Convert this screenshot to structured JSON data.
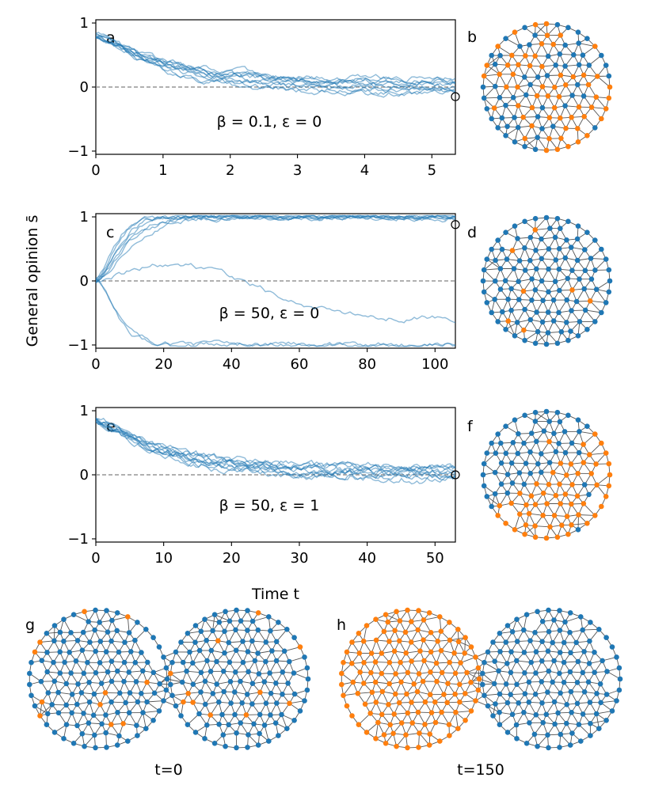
{
  "figure": {
    "ylabel": "General opinion s̄",
    "xlabel": "Time t",
    "colors": {
      "line": "#1f77b4",
      "blue": "#1f77b4",
      "orange": "#ff7f0e",
      "edge": "#555555",
      "zero": "#808080"
    }
  },
  "chart_data": [
    {
      "type": "line",
      "id": "a",
      "panel_label": "a",
      "annotation": "β = 0.1, ε = 0",
      "xlim": [
        0,
        5.35
      ],
      "ylim": [
        -1.05,
        1.05
      ],
      "xticks": [
        "0",
        "1",
        "2",
        "3",
        "4",
        "5"
      ],
      "xtick_values": [
        0,
        1,
        2,
        3,
        4,
        5
      ],
      "yticks": [
        "−1",
        "0",
        "1"
      ],
      "ytick_values": [
        -1,
        0,
        1
      ],
      "zero_line": true,
      "marker_end": [
        5.35,
        -0.15
      ],
      "series_count": 10,
      "series_start": 0.8,
      "series_targets": [
        0.05,
        -0.05,
        0.1,
        -0.1,
        0.0,
        0.12,
        -0.12,
        0.05,
        -0.02,
        0.08
      ],
      "trend": "decay",
      "decay_rate": 1.1,
      "noise": 0.035
    },
    {
      "type": "line",
      "id": "c",
      "panel_label": "c",
      "annotation": "β = 50, ε = 0",
      "xlim": [
        0,
        106
      ],
      "ylim": [
        -1.05,
        1.05
      ],
      "xticks": [
        "0",
        "20",
        "40",
        "60",
        "80",
        "100"
      ],
      "xtick_values": [
        0,
        20,
        40,
        60,
        80,
        100
      ],
      "yticks": [
        "−1",
        "0",
        "1"
      ],
      "ytick_values": [
        -1,
        0,
        1
      ],
      "zero_line": true,
      "marker_end": [
        106,
        0.88
      ],
      "series_count": 10,
      "series_start": 0.0,
      "series_targets": [
        1,
        1,
        1,
        1,
        1,
        1,
        0.98,
        -1,
        -1,
        -0.6
      ],
      "trend": "polarize",
      "decay_rate": 0.12,
      "noise": 0.03
    },
    {
      "type": "line",
      "id": "e",
      "panel_label": "e",
      "annotation": "β = 50, ε = 1",
      "xlim": [
        0,
        53
      ],
      "ylim": [
        -1.05,
        1.05
      ],
      "xticks": [
        "0",
        "10",
        "20",
        "30",
        "40",
        "50"
      ],
      "xtick_values": [
        0,
        10,
        20,
        30,
        40,
        50
      ],
      "yticks": [
        "−1",
        "0",
        "1"
      ],
      "ytick_values": [
        -1,
        0,
        1
      ],
      "zero_line": true,
      "marker_end": [
        53,
        0.0
      ],
      "series_count": 10,
      "series_start": 0.85,
      "series_targets": [
        0.05,
        -0.05,
        0.1,
        0.0,
        0.12,
        -0.08,
        0.06,
        0.02,
        -0.03,
        0.09
      ],
      "trend": "decay",
      "decay_rate": 0.09,
      "noise": 0.045
    }
  ],
  "networks": [
    {
      "id": "b",
      "label": "b",
      "orange_fraction": 0.45,
      "pattern": "random",
      "seed": 3
    },
    {
      "id": "d",
      "label": "d",
      "orange_fraction": 0.06,
      "pattern": "random",
      "seed": 7
    },
    {
      "id": "f",
      "label": "f",
      "orange_fraction": 0.5,
      "pattern": "halfplane",
      "seed": 11
    },
    {
      "id": "g",
      "label": "g",
      "caption": "t=0",
      "orange_fraction": 0.1,
      "pattern": "random",
      "seed": 19
    },
    {
      "id": "h",
      "label": "h",
      "caption": "t=150",
      "orange_fraction": 0.5,
      "pattern": "left-circle",
      "seed": 23
    }
  ]
}
